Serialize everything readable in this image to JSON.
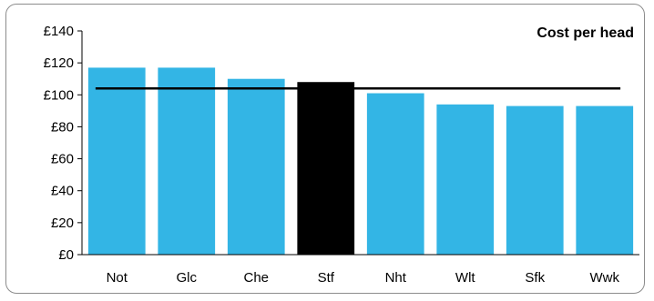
{
  "chart_data": {
    "type": "bar",
    "title": "Cost per head",
    "categories": [
      "Not",
      "Glc",
      "Che",
      "Stf",
      "Nht",
      "Wlt",
      "Sfk",
      "Wwk"
    ],
    "values": [
      117,
      117,
      110,
      108,
      101,
      94,
      93,
      93
    ],
    "highlight_category": "Stf",
    "reference_line": 104,
    "ylim": [
      0,
      140
    ],
    "yticks": [
      0,
      20,
      40,
      60,
      80,
      100,
      120,
      140
    ],
    "ytick_labels": [
      "£0",
      "£20",
      "£40",
      "£60",
      "£80",
      "£100",
      "£120",
      "£140"
    ],
    "xlabel": "",
    "ylabel": "",
    "legend": "none",
    "grid": false,
    "colors": {
      "bar": "#33b5e5",
      "highlight": "#000000",
      "reference_line": "#000000",
      "axis": "#000000"
    }
  }
}
